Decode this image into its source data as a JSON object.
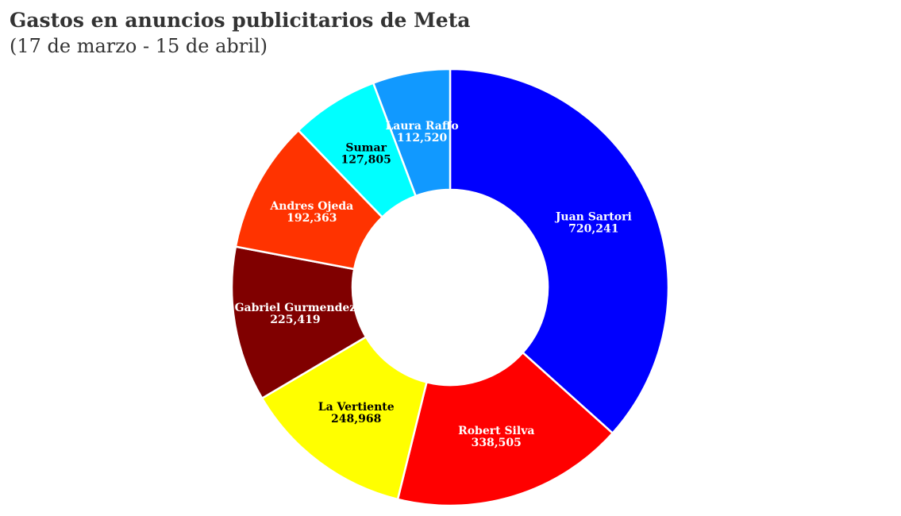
{
  "header": {
    "title": "Gastos en anuncios publicitarios de Meta",
    "subtitle": "(17 de marzo - 15 de abril)"
  },
  "chart_data": {
    "type": "pie",
    "variant": "donut",
    "categories": [
      "Juan Sartori",
      "Robert Silva",
      "La Vertiente",
      "Gabriel Gurmendez",
      "Andres Ojeda",
      "Sumar",
      "Laura Raffo"
    ],
    "values": [
      720241,
      338505,
      248968,
      225419,
      192363,
      127805,
      112520
    ],
    "value_labels": [
      "720,241",
      "338,505",
      "248,968",
      "225,419",
      "192,363",
      "127,805",
      "112,520"
    ],
    "colors": [
      "#0000ff",
      "#ff0000",
      "#ffff00",
      "#800000",
      "#ff3300",
      "#00ffff",
      "#1199ff"
    ],
    "label_colors": [
      "#ffffff",
      "#ffffff",
      "#000000",
      "#ffffff",
      "#ffffff",
      "#000000",
      "#ffffff"
    ],
    "legend": "none"
  }
}
